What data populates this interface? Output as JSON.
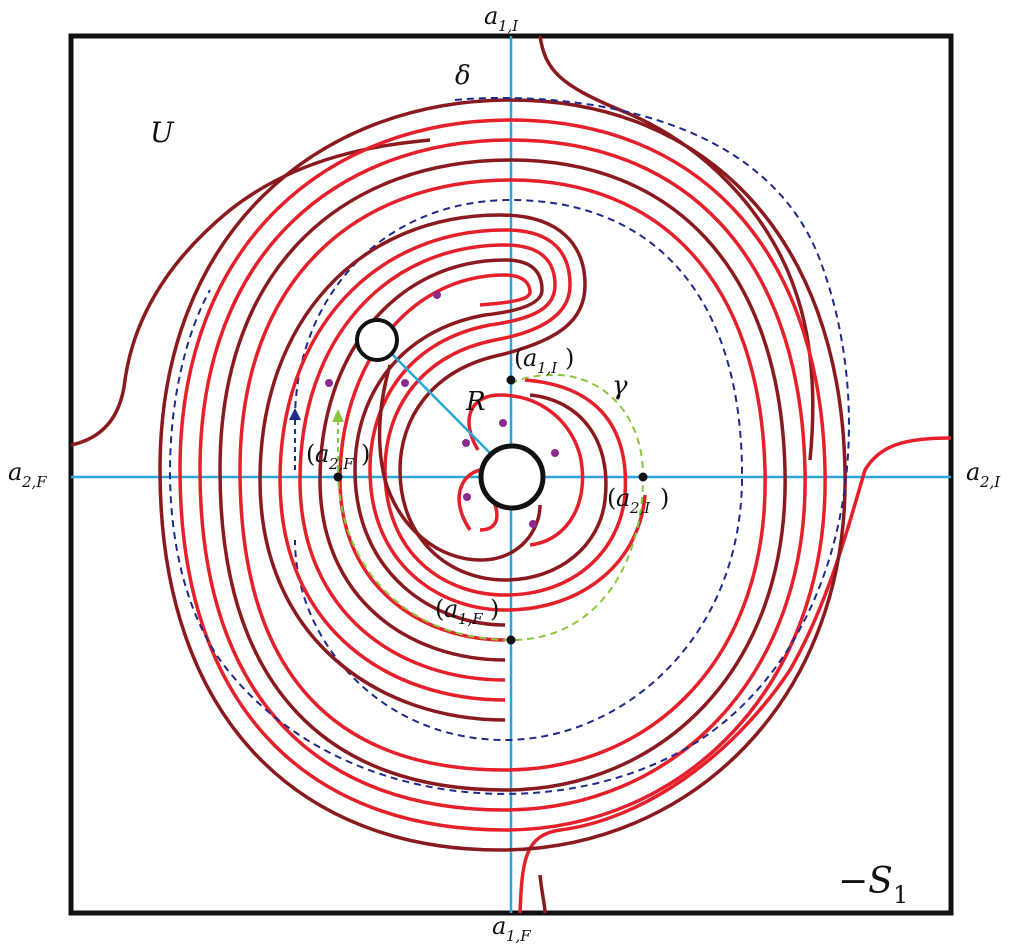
{
  "labels": {
    "region_U": "U",
    "delta": "δ",
    "gamma": "γ",
    "R": "R",
    "minus_S1": "−S",
    "minus_S1_sub": "1"
  },
  "axis_labels": {
    "a1I": {
      "base": "a",
      "sub": "1,I"
    },
    "a1F": {
      "base": "a",
      "sub": "1,F"
    },
    "a2F": {
      "base": "a",
      "sub": "2,F"
    },
    "a2I": {
      "base": "a",
      "sub": "2,I"
    }
  },
  "point_labels": {
    "p_a1I": {
      "base": "a",
      "sub": "1,I"
    },
    "p_a1F": {
      "base": "a",
      "sub": "1,F"
    },
    "p_a2F": {
      "base": "a",
      "sub": "2,F"
    },
    "p_a2I": {
      "base": "a",
      "sub": "2,I"
    }
  },
  "colors": {
    "frame": "#111111",
    "axes": "#2aa6dc",
    "curve_red": "#e5202a",
    "curve_dark_red": "#8b1a1f",
    "delta_dashed": "#1f2a8a",
    "gamma_dashed": "#8cc63f",
    "dots": "#8b2a8f",
    "points": "#111111"
  }
}
